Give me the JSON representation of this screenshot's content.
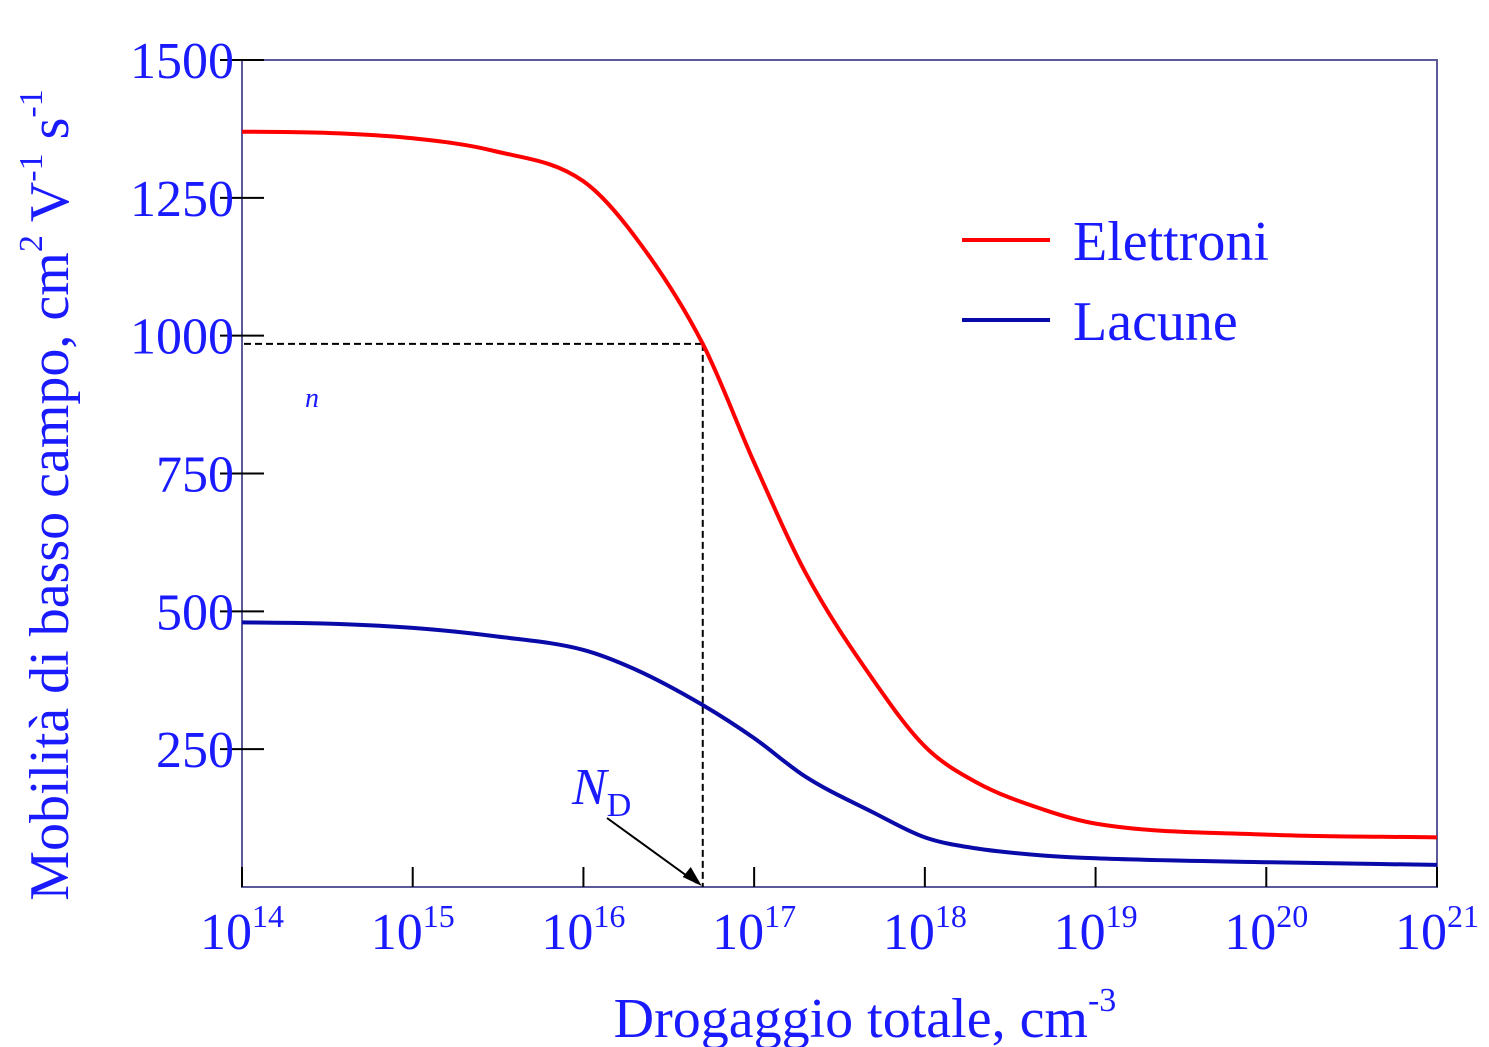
{
  "chart_data": {
    "type": "line",
    "xscale": "log",
    "xlim": [
      100000000000000.0,
      1e+21
    ],
    "ylim": [
      0,
      1500
    ],
    "xlabel": "Drogaggio totale, cm",
    "xlabel_sup": "-3",
    "ylabel_parts": [
      {
        "t": "Mobilità di basso campo, cm",
        "sup": false
      },
      {
        "t": "2",
        "sup": true
      },
      {
        "t": " V",
        "sup": false
      },
      {
        "t": "-1",
        "sup": true
      },
      {
        "t": " s",
        "sup": false
      },
      {
        "t": "-1",
        "sup": true
      }
    ],
    "yticks": [
      250,
      500,
      750,
      1000,
      1250,
      1500
    ],
    "ytick_labels": [
      "250",
      "500",
      "750",
      "1000",
      "1250",
      "1500"
    ],
    "xticks": [
      {
        "value": 100000000000000.0,
        "base": "10",
        "exp": "14"
      },
      {
        "value": 1000000000000000.0,
        "base": "10",
        "exp": "15"
      },
      {
        "value": 1e+16,
        "base": "10",
        "exp": "16"
      },
      {
        "value": 1e+17,
        "base": "10",
        "exp": "17"
      },
      {
        "value": 1e+18,
        "base": "10",
        "exp": "18"
      },
      {
        "value": 1e+19,
        "base": "10",
        "exp": "19"
      },
      {
        "value": 1e+20,
        "base": "10",
        "exp": "20"
      },
      {
        "value": 1e+21,
        "base": "10",
        "exp": "21"
      }
    ],
    "grid": false,
    "legend_position": "top-right",
    "series": [
      {
        "name": "Elettroni",
        "color": "#ff0000",
        "x": [
          100000000000000.0,
          300000000000000.0,
          1000000000000000.0,
          3000000000000000.0,
          1e+16,
          2e+16,
          5e+16,
          1e+17,
          2e+17,
          5e+17,
          1e+18,
          2e+18,
          5e+18,
          1e+19,
          1e+20,
          1e+21
        ],
        "y": [
          1370,
          1368,
          1358,
          1335,
          1280,
          1180,
          985,
          770,
          570,
          375,
          255,
          190,
          140,
          115,
          95,
          90
        ]
      },
      {
        "name": "Lacune",
        "color": "#0a0aa8",
        "x": [
          100000000000000.0,
          300000000000000.0,
          1000000000000000.0,
          3000000000000000.0,
          1e+16,
          2e+16,
          5e+16,
          1e+17,
          2e+17,
          5e+17,
          1e+18,
          2e+18,
          5e+18,
          1e+19,
          1e+20,
          1e+21
        ],
        "y": [
          480,
          478,
          470,
          455,
          430,
          395,
          330,
          270,
          200,
          135,
          90,
          70,
          57,
          52,
          45,
          40
        ]
      }
    ],
    "annotations": {
      "nd_base": "N",
      "nd_sub": "D",
      "n_label": "n",
      "marker_x": 5e+16,
      "marker_y": 985
    }
  },
  "colors": {
    "text": "#1a1aff",
    "axis": "#5a5a9a",
    "guide": "#000000"
  }
}
